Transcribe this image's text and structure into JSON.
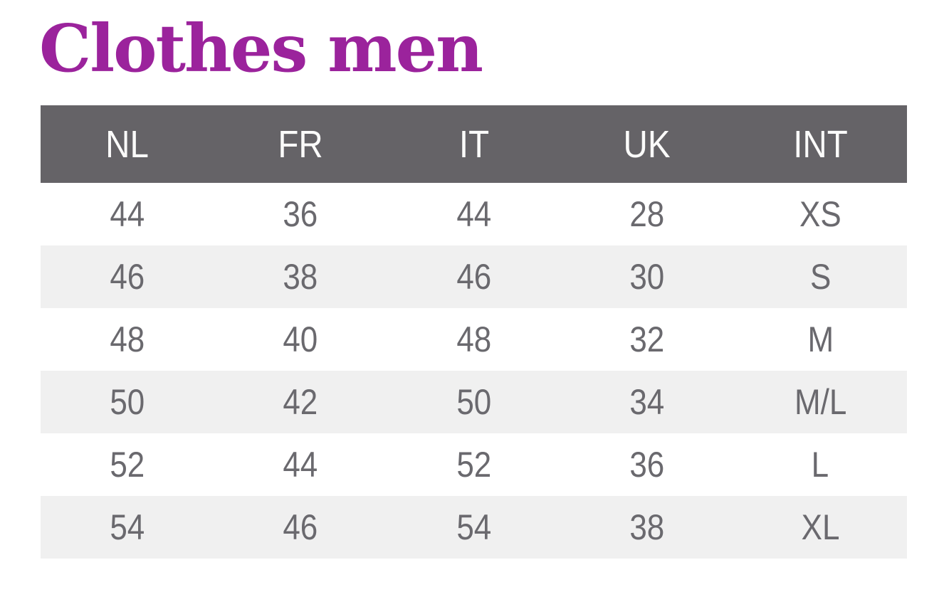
{
  "page": {
    "title": "Clothes men"
  },
  "colors": {
    "title_text": "#9b239c",
    "header_background": "#656367",
    "header_text": "#ffffff",
    "row_stripe_background": "#f0f0f0",
    "row_background": "#ffffff",
    "cell_text": "#6a696e"
  },
  "table": {
    "columns": [
      "NL",
      "FR",
      "IT",
      "UK",
      "INT"
    ],
    "rows": [
      {
        "cells": [
          "44",
          "36",
          "44",
          "28",
          "XS"
        ]
      },
      {
        "cells": [
          "46",
          "38",
          "46",
          "30",
          "S"
        ]
      },
      {
        "cells": [
          "48",
          "40",
          "48",
          "32",
          "M"
        ]
      },
      {
        "cells": [
          "50",
          "42",
          "50",
          "34",
          "M/L"
        ]
      },
      {
        "cells": [
          "52",
          "44",
          "52",
          "36",
          "L"
        ]
      },
      {
        "cells": [
          "54",
          "46",
          "54",
          "38",
          "XL"
        ]
      }
    ]
  }
}
